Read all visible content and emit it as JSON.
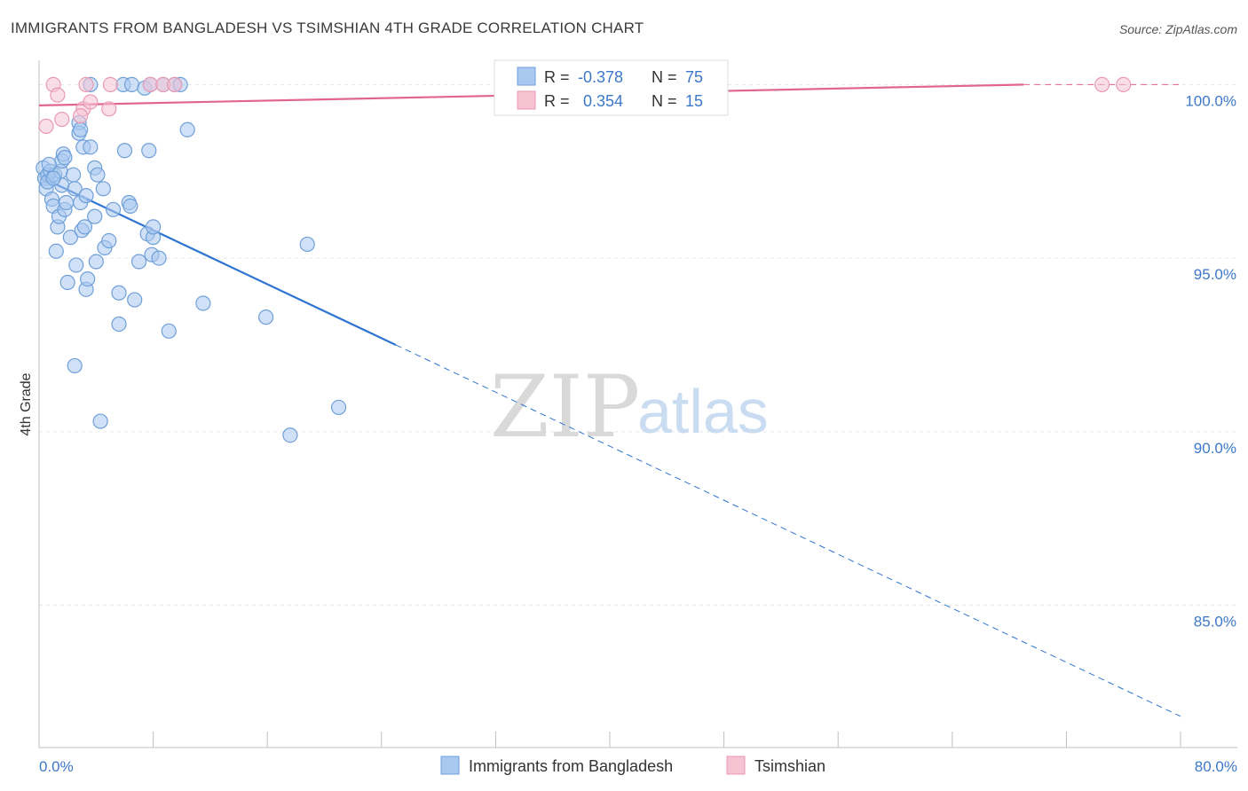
{
  "title": "IMMIGRANTS FROM BANGLADESH VS TSIMSHIAN 4TH GRADE CORRELATION CHART",
  "source": "Source: ZipAtlas.com",
  "watermark": {
    "zip": "ZIP",
    "atlas": "atlas"
  },
  "colors": {
    "blue_fill": "#a9c8f0",
    "blue_stroke": "#6f9fd8",
    "blue_line": "#2f74d0",
    "pink_fill": "#f6c3d3",
    "pink_stroke": "#e89ab3",
    "pink_line": "#e0668c",
    "grid": "#e6e6e6",
    "axis_text": "#3d78c9"
  },
  "chart_data": {
    "type": "scatter",
    "xlabel": "",
    "ylabel": "4th Grade",
    "xlim": [
      0,
      80
    ],
    "ylim": [
      80.9,
      100.7
    ],
    "x_tick_labels": [
      "0.0%",
      "80.0%"
    ],
    "y_ticks": [
      {
        "value": 100,
        "label": "100.0%"
      },
      {
        "value": 95,
        "label": "95.0%"
      },
      {
        "value": 90,
        "label": "90.0%"
      },
      {
        "value": 85,
        "label": "85.0%"
      }
    ],
    "legend_stats": [
      {
        "r_label": "R =",
        "r_value": "-0.378",
        "n_label": "N =",
        "n_value": "75"
      },
      {
        "r_label": "R =",
        "r_value": "0.354",
        "n_label": "N =",
        "n_value": "15"
      }
    ],
    "series": [
      {
        "name": "Immigrants from Bangladesh",
        "color": "blue",
        "points": [
          [
            0.3,
            97.6
          ],
          [
            0.4,
            97.3
          ],
          [
            0.5,
            97.0
          ],
          [
            0.6,
            97.4
          ],
          [
            0.6,
            97.2
          ],
          [
            0.8,
            97.5
          ],
          [
            0.9,
            96.7
          ],
          [
            1.0,
            96.5
          ],
          [
            1.1,
            97.4
          ],
          [
            1.2,
            95.2
          ],
          [
            1.3,
            95.9
          ],
          [
            1.4,
            96.2
          ],
          [
            1.5,
            97.5
          ],
          [
            1.6,
            97.1
          ],
          [
            1.6,
            97.8
          ],
          [
            1.7,
            98.0
          ],
          [
            1.8,
            97.9
          ],
          [
            1.8,
            96.4
          ],
          [
            1.9,
            96.6
          ],
          [
            2.0,
            94.3
          ],
          [
            2.2,
            95.6
          ],
          [
            2.4,
            97.4
          ],
          [
            2.5,
            97.0
          ],
          [
            2.5,
            91.9
          ],
          [
            2.6,
            94.8
          ],
          [
            2.8,
            98.9
          ],
          [
            2.8,
            98.6
          ],
          [
            2.9,
            98.7
          ],
          [
            2.9,
            96.6
          ],
          [
            3.0,
            95.8
          ],
          [
            3.1,
            98.2
          ],
          [
            3.2,
            95.9
          ],
          [
            3.3,
            96.8
          ],
          [
            3.3,
            94.1
          ],
          [
            3.4,
            94.4
          ],
          [
            3.6,
            100.0
          ],
          [
            3.6,
            98.2
          ],
          [
            3.9,
            97.6
          ],
          [
            3.9,
            96.2
          ],
          [
            4.0,
            94.9
          ],
          [
            4.1,
            97.4
          ],
          [
            4.3,
            90.3
          ],
          [
            4.5,
            97.0
          ],
          [
            4.6,
            95.3
          ],
          [
            4.9,
            95.5
          ],
          [
            5.2,
            96.4
          ],
          [
            5.6,
            94.0
          ],
          [
            5.6,
            93.1
          ],
          [
            5.9,
            100.0
          ],
          [
            6.0,
            98.1
          ],
          [
            6.3,
            96.6
          ],
          [
            6.4,
            96.5
          ],
          [
            6.5,
            100.0
          ],
          [
            6.7,
            93.8
          ],
          [
            7.0,
            94.9
          ],
          [
            7.4,
            99.9
          ],
          [
            7.6,
            95.7
          ],
          [
            7.7,
            98.1
          ],
          [
            7.8,
            100.0
          ],
          [
            7.9,
            95.1
          ],
          [
            8.0,
            95.6
          ],
          [
            8.0,
            95.9
          ],
          [
            8.4,
            95.0
          ],
          [
            8.7,
            100.0
          ],
          [
            9.1,
            92.9
          ],
          [
            9.5,
            100.0
          ],
          [
            9.9,
            100.0
          ],
          [
            10.4,
            98.7
          ],
          [
            11.5,
            93.7
          ],
          [
            15.9,
            93.3
          ],
          [
            17.6,
            89.9
          ],
          [
            18.8,
            95.4
          ],
          [
            21.0,
            90.7
          ],
          [
            0.7,
            97.7
          ],
          [
            1.0,
            97.3
          ]
        ],
        "trend_solid": [
          [
            0.3,
            97.3
          ],
          [
            25.0,
            92.5
          ]
        ],
        "trend_dashed": [
          [
            25.0,
            92.5
          ],
          [
            80.0,
            81.8
          ]
        ]
      },
      {
        "name": "Tsimshian",
        "color": "pink",
        "points": [
          [
            0.5,
            98.8
          ],
          [
            1.0,
            100.0
          ],
          [
            1.3,
            99.7
          ],
          [
            1.6,
            99.0
          ],
          [
            3.1,
            99.3
          ],
          [
            3.3,
            100.0
          ],
          [
            3.6,
            99.5
          ],
          [
            4.9,
            99.3
          ],
          [
            5.0,
            100.0
          ],
          [
            7.8,
            100.0
          ],
          [
            8.7,
            100.0
          ],
          [
            9.5,
            100.0
          ],
          [
            2.9,
            99.1
          ],
          [
            74.5,
            100.0
          ],
          [
            76.0,
            100.0
          ]
        ],
        "trend_solid": [
          [
            0.0,
            99.4
          ],
          [
            69.0,
            100.0
          ]
        ],
        "trend_dashed": [
          [
            69.0,
            100.0
          ],
          [
            80.0,
            100.0
          ]
        ]
      }
    ]
  }
}
